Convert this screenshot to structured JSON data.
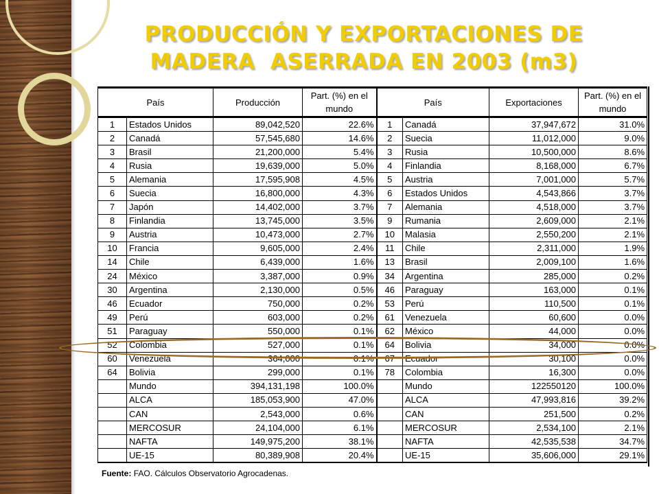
{
  "title": {
    "line1": "PRODUCCIÓN Y EXPORTACIONES DE",
    "line2": "MADERA  ASERRADA EN 2003 (m3)"
  },
  "colors": {
    "title": "#f0cc00",
    "highlight_ellipse": "#9a6a22",
    "wood_panel": "#7a4e2d",
    "rings": "#e2d69b"
  },
  "table": {
    "headers": {
      "prod_country": "País",
      "production": "Producción",
      "prod_share": "Part. (%) en el mundo",
      "exp_country": "País",
      "exports": "Exportaciones",
      "exp_share": "Part. (%) en el mundo"
    },
    "rows": [
      [
        "1",
        "Estados Unidos",
        "89,042,520",
        "22.6%",
        "1",
        "Canadá",
        "37,947,672",
        "31.0%"
      ],
      [
        "2",
        "Canadá",
        "57,545,680",
        "14.6%",
        "2",
        "Suecia",
        "11,012,000",
        "9.0%"
      ],
      [
        "3",
        "Brasil",
        "21,200,000",
        "5.4%",
        "3",
        "Rusia",
        "10,500,000",
        "8.6%"
      ],
      [
        "4",
        "Rusia",
        "19,639,000",
        "5.0%",
        "4",
        "Finlandia",
        "8,168,000",
        "6.7%"
      ],
      [
        "5",
        "Alemania",
        "17,595,908",
        "4.5%",
        "5",
        "Austria",
        "7,001,000",
        "5.7%"
      ],
      [
        "6",
        "Suecia",
        "16,800,000",
        "4.3%",
        "6",
        "Estados Unidos",
        "4,543,866",
        "3.7%"
      ],
      [
        "7",
        "Japón",
        "14,402,000",
        "3.7%",
        "7",
        "Alemania",
        "4,518,000",
        "3.7%"
      ],
      [
        "8",
        "Finlandia",
        "13,745,000",
        "3.5%",
        "9",
        "Rumania",
        "2,609,000",
        "2.1%"
      ],
      [
        "9",
        "Austria",
        "10,473,000",
        "2.7%",
        "10",
        "Malasia",
        "2,550,200",
        "2.1%"
      ],
      [
        "10",
        "Francia",
        "9,605,000",
        "2.4%",
        "11",
        "Chile",
        "2,311,000",
        "1.9%"
      ],
      [
        "14",
        "Chile",
        "6,439,000",
        "1.6%",
        "13",
        "Brasil",
        "2,009,100",
        "1.6%"
      ],
      [
        "24",
        "México",
        "3,387,000",
        "0.9%",
        "34",
        "Argentina",
        "285,000",
        "0.2%"
      ],
      [
        "30",
        "Argentina",
        "2,130,000",
        "0.5%",
        "46",
        "Paraguay",
        "163,000",
        "0.1%"
      ],
      [
        "46",
        "Ecuador",
        "750,000",
        "0.2%",
        "53",
        "Perú",
        "110,500",
        "0.1%"
      ],
      [
        "49",
        "Perú",
        "603,000",
        "0.2%",
        "61",
        "Venezuela",
        "60,600",
        "0.0%"
      ],
      [
        "51",
        "Paraguay",
        "550,000",
        "0.1%",
        "62",
        "México",
        "44,000",
        "0.0%"
      ],
      [
        "52",
        "Colombia",
        "527,000",
        "0.1%",
        "64",
        "Bolivia",
        "34,000",
        "0.0%"
      ],
      [
        "60",
        "Venezuela",
        "364,000",
        "0.1%",
        "67",
        "Ecuador",
        "30,100",
        "0.0%"
      ],
      [
        "64",
        "Bolivia",
        "299,000",
        "0.1%",
        "78",
        "Colombia",
        "16,300",
        "0.0%"
      ],
      [
        "",
        "Mundo",
        "394,131,198",
        "100.0%",
        "",
        "Mundo",
        "122550120",
        "100.0%"
      ],
      [
        "",
        "ALCA",
        "185,053,900",
        "47.0%",
        "",
        "ALCA",
        "47,993,816",
        "39.2%"
      ],
      [
        "",
        "CAN",
        "2,543,000",
        "0.6%",
        "",
        "CAN",
        "251,500",
        "0.2%"
      ],
      [
        "",
        "MERCOSUR",
        "24,104,000",
        "6.1%",
        "",
        "MERCOSUR",
        "2,534,100",
        "2.1%"
      ],
      [
        "",
        "NAFTA",
        "149,975,200",
        "38.1%",
        "",
        "NAFTA",
        "42,535,538",
        "34.7%"
      ],
      [
        "",
        "UE-15",
        "80,389,908",
        "20.4%",
        "",
        "UE-15",
        "35,606,000",
        "29.1%"
      ]
    ]
  },
  "source": {
    "label": "Fuente:",
    "text": "FAO. Cálculos Observatorio Agrocadenas."
  }
}
